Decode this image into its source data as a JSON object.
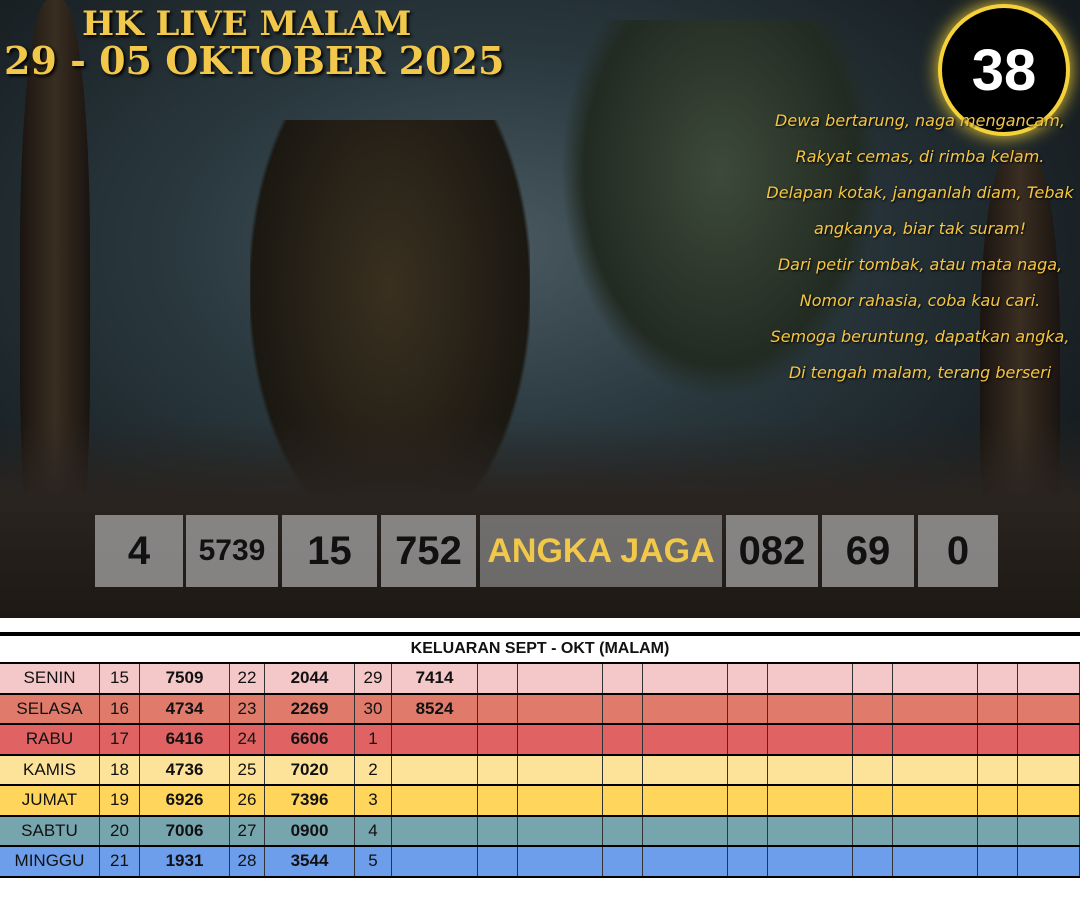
{
  "header": {
    "title": "HK LIVE MALAM",
    "subtitle": "29 - 05 OKTOBER 2025",
    "badge": "38"
  },
  "poem": [
    "Dewa bertarung, naga mengancam,",
    "Rakyat cemas, di rimba kelam.",
    "Delapan kotak, janganlah diam, Tebak",
    "angkanya, biar tak suram!",
    "Dari petir tombak, atau mata naga,",
    "Nomor rahasia, coba kau cari.",
    "Semoga beruntung, dapatkan angka,",
    "Di tengah malam, terang berseri"
  ],
  "numbers": [
    "4",
    "5739",
    "15",
    "752",
    "ANGKA JAGA",
    "082",
    "69",
    "0"
  ],
  "table": {
    "title": "KELUARAN SEPT - OKT (MALAM)",
    "rows": [
      {
        "day": "SENIN",
        "color": "#f4c7c9",
        "cells": [
          "15",
          "7509",
          "22",
          "2044",
          "29",
          "7414"
        ]
      },
      {
        "day": "SELASA",
        "color": "#e07b6b",
        "cells": [
          "16",
          "4734",
          "23",
          "2269",
          "30",
          "8524"
        ]
      },
      {
        "day": "RABU",
        "color": "#e06262",
        "cells": [
          "17",
          "6416",
          "24",
          "6606",
          "1",
          ""
        ]
      },
      {
        "day": "KAMIS",
        "color": "#fde39a",
        "cells": [
          "18",
          "4736",
          "25",
          "7020",
          "2",
          ""
        ]
      },
      {
        "day": "JUMAT",
        "color": "#ffd65b",
        "cells": [
          "19",
          "6926",
          "26",
          "7396",
          "3",
          ""
        ]
      },
      {
        "day": "SABTU",
        "color": "#76a5ae",
        "cells": [
          "20",
          "7006",
          "27",
          "0900",
          "4",
          ""
        ]
      },
      {
        "day": "MINGGU",
        "color": "#6d9eeb",
        "cells": [
          "21",
          "1931",
          "28",
          "3544",
          "5",
          ""
        ]
      }
    ]
  }
}
